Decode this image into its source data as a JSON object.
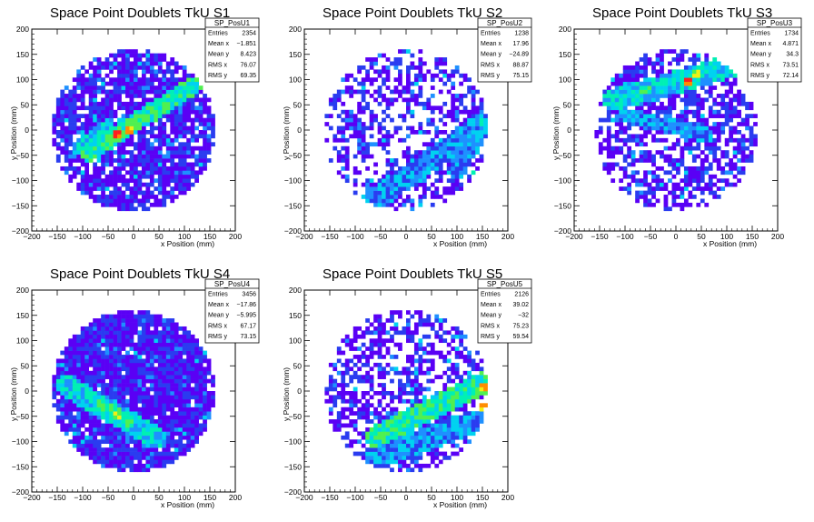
{
  "colors": {
    "palette": [
      "#5a00f5",
      "#2a3cf0",
      "#1e90ff",
      "#00d2f0",
      "#00f0b4",
      "#50f050",
      "#f0f014",
      "#ff8c00",
      "#ff1e1e"
    ],
    "frame": "#000000",
    "background": "#ffffff"
  },
  "chart_data": [
    {
      "type": "heatmap",
      "title": "Space Point Doublets TkU S1",
      "xlabel": "x Position (mm)",
      "ylabel": "y Position (mm)",
      "xlim": [
        -200,
        200
      ],
      "ylim": [
        -200,
        200
      ],
      "xticks": [
        -200,
        -150,
        -100,
        -50,
        0,
        50,
        100,
        150,
        200
      ],
      "yticks": [
        -200,
        -150,
        -100,
        -50,
        0,
        50,
        100,
        150,
        200
      ],
      "stats": {
        "name": "SP_PosU1",
        "rows": [
          {
            "label": "Entries",
            "value": "2354"
          },
          {
            "label": "Mean x",
            "value": "−1.851"
          },
          {
            "label": "Mean y",
            "value": "8.423"
          },
          {
            "label": "RMS x",
            "value": "76.07"
          },
          {
            "label": "RMS y",
            "value": "69.35"
          }
        ]
      },
      "bin_size_mm": 8,
      "distribution": {
        "radius_mm": 160,
        "occupancy": 0.8,
        "bands": [
          {
            "x1": -90,
            "y1": -45,
            "x2": 120,
            "y2": 90,
            "width": 18,
            "level": 5
          },
          {
            "x1": -110,
            "y1": -35,
            "x2": -50,
            "y2": 10,
            "width": 14,
            "level": 4
          }
        ],
        "hotspots": [
          {
            "x": -30,
            "y": -10,
            "level": 8
          },
          {
            "x": -10,
            "y": 0,
            "level": 7
          },
          {
            "x": -45,
            "y": -15,
            "level": 6
          },
          {
            "x": 20,
            "y": 25,
            "level": 5
          }
        ]
      }
    },
    {
      "type": "heatmap",
      "title": "Space Point Doublets TkU S2",
      "xlabel": "x Position (mm)",
      "ylabel": "y Position (mm)",
      "xlim": [
        -200,
        200
      ],
      "ylim": [
        -200,
        200
      ],
      "xticks": [
        -200,
        -150,
        -100,
        -50,
        0,
        50,
        100,
        150,
        200
      ],
      "yticks": [
        -200,
        -150,
        -100,
        -50,
        0,
        50,
        100,
        150,
        200
      ],
      "stats": {
        "name": "SP_PosU2",
        "rows": [
          {
            "label": "Entries",
            "value": "1238"
          },
          {
            "label": "Mean x",
            "value": "17.96"
          },
          {
            "label": "Mean y",
            "value": "−24.89"
          },
          {
            "label": "RMS x",
            "value": "88.87"
          },
          {
            "label": "RMS y",
            "value": "75.15"
          }
        ]
      },
      "bin_size_mm": 8,
      "distribution": {
        "radius_mm": 160,
        "occupancy": 0.45,
        "bands": [
          {
            "x1": -80,
            "y1": -150,
            "x2": 160,
            "y2": 20,
            "width": 22,
            "level": 3
          },
          {
            "x1": 100,
            "y1": -80,
            "x2": 160,
            "y2": 30,
            "width": 18,
            "level": 3
          },
          {
            "x1": -110,
            "y1": 30,
            "x2": -80,
            "y2": -40,
            "width": 10,
            "level": 2
          }
        ],
        "hotspots": [
          {
            "x": 150,
            "y": 20,
            "level": 4
          },
          {
            "x": 130,
            "y": -80,
            "level": 4
          },
          {
            "x": -80,
            "y": -120,
            "level": 3
          }
        ]
      }
    },
    {
      "type": "heatmap",
      "title": "Space Point Doublets TkU S3",
      "xlabel": "x Position (mm)",
      "ylabel": "y Position (mm)",
      "xlim": [
        -200,
        200
      ],
      "ylim": [
        -200,
        200
      ],
      "xticks": [
        -200,
        -150,
        -100,
        -50,
        0,
        50,
        100,
        150,
        200
      ],
      "yticks": [
        -200,
        -150,
        -100,
        -50,
        0,
        50,
        100,
        150,
        200
      ],
      "stats": {
        "name": "SP_PosU3",
        "rows": [
          {
            "label": "Entries",
            "value": "1734"
          },
          {
            "label": "Mean x",
            "value": "4.871"
          },
          {
            "label": "Mean y",
            "value": "34.3"
          },
          {
            "label": "RMS x",
            "value": "73.51"
          },
          {
            "label": "RMS y",
            "value": "72.14"
          }
        ]
      },
      "bin_size_mm": 8,
      "distribution": {
        "radius_mm": 160,
        "occupancy": 0.6,
        "bands": [
          {
            "x1": -120,
            "y1": 60,
            "x2": 120,
            "y2": 130,
            "width": 22,
            "level": 4
          },
          {
            "x1": -100,
            "y1": 30,
            "x2": 60,
            "y2": -10,
            "width": 14,
            "level": 3
          }
        ],
        "hotspots": [
          {
            "x": 25,
            "y": 95,
            "level": 8
          },
          {
            "x": 40,
            "y": 110,
            "level": 6
          },
          {
            "x": -60,
            "y": 80,
            "level": 5
          }
        ]
      }
    },
    {
      "type": "heatmap",
      "title": "Space Point Doublets TkU S4",
      "xlabel": "x Position (mm)",
      "ylabel": "y Position (mm)",
      "xlim": [
        -200,
        200
      ],
      "ylim": [
        -200,
        200
      ],
      "xticks": [
        -200,
        -150,
        -100,
        -50,
        0,
        50,
        100,
        150,
        200
      ],
      "yticks": [
        -200,
        -150,
        -100,
        -50,
        0,
        50,
        100,
        150,
        200
      ],
      "stats": {
        "name": "SP_PosU4",
        "rows": [
          {
            "label": "Entries",
            "value": "3456"
          },
          {
            "label": "Mean x",
            "value": "−17.86"
          },
          {
            "label": "Mean y",
            "value": "−5.995"
          },
          {
            "label": "RMS x",
            "value": "67.17"
          },
          {
            "label": "RMS y",
            "value": "73.15"
          }
        ]
      },
      "bin_size_mm": 8,
      "distribution": {
        "radius_mm": 160,
        "occupancy": 0.95,
        "bands": [
          {
            "x1": -130,
            "y1": 10,
            "x2": 40,
            "y2": -90,
            "width": 22,
            "level": 4
          },
          {
            "x1": -60,
            "y1": -30,
            "x2": -10,
            "y2": -60,
            "width": 14,
            "level": 5
          }
        ],
        "hotspots": [
          {
            "x": -30,
            "y": -50,
            "level": 6
          },
          {
            "x": -60,
            "y": -30,
            "level": 5
          },
          {
            "x": -10,
            "y": -60,
            "level": 5
          }
        ]
      }
    },
    {
      "type": "heatmap",
      "title": "Space Point Doublets TkU S5",
      "xlabel": "x Position (mm)",
      "ylabel": "y Position (mm)",
      "xlim": [
        -200,
        200
      ],
      "ylim": [
        -200,
        200
      ],
      "xticks": [
        -200,
        -150,
        -100,
        -50,
        0,
        50,
        100,
        150,
        200
      ],
      "yticks": [
        -200,
        -150,
        -100,
        -50,
        0,
        50,
        100,
        150,
        200
      ],
      "stats": {
        "name": "SP_PosU5",
        "rows": [
          {
            "label": "Entries",
            "value": "2126"
          },
          {
            "label": "Mean x",
            "value": "39.02"
          },
          {
            "label": "Mean y",
            "value": "−32"
          },
          {
            "label": "RMS x",
            "value": "75.23"
          },
          {
            "label": "RMS y",
            "value": "59.54"
          }
        ]
      },
      "bin_size_mm": 8,
      "distribution": {
        "radius_mm": 160,
        "occupancy": 0.55,
        "bands": [
          {
            "x1": -60,
            "y1": -90,
            "x2": 160,
            "y2": 20,
            "width": 20,
            "level": 5
          },
          {
            "x1": -60,
            "y1": -130,
            "x2": 140,
            "y2": -60,
            "width": 24,
            "level": 3
          }
        ],
        "hotspots": [
          {
            "x": 150,
            "y": 10,
            "level": 7
          },
          {
            "x": 150,
            "y": -30,
            "level": 7
          },
          {
            "x": 100,
            "y": -10,
            "level": 5
          }
        ]
      }
    }
  ]
}
